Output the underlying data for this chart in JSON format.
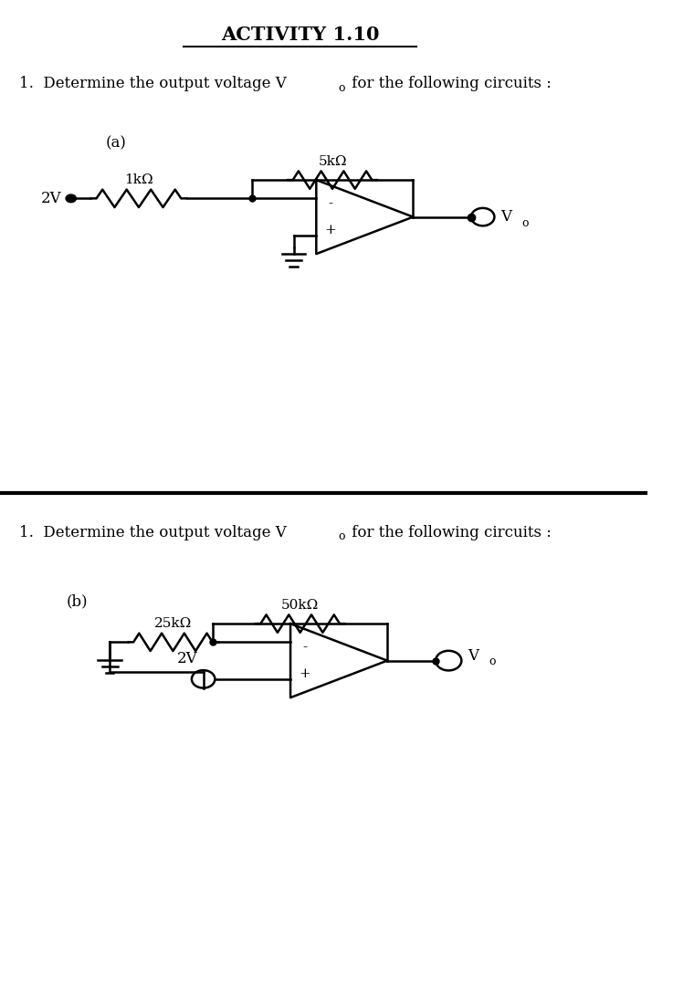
{
  "title": "ACTIVITY 1.10",
  "question": "1.  Determine the output voltage V",
  "question_sub": "o",
  "question_rest": " for the following circuits :",
  "part_a": "(a)",
  "part_b": "(b)",
  "res_a1": "1kΩ",
  "res_a2": "5kΩ",
  "res_b1": "25kΩ",
  "res_b2": "50kΩ",
  "volt_a": "2V",
  "volt_b": "2V",
  "vo_label": "V",
  "vo_sub": "o",
  "bg": "#ffffff",
  "lc": "#000000",
  "lw": 1.8,
  "title_fs": 15,
  "text_fs": 12,
  "small_fs": 9,
  "res_fs": 11
}
